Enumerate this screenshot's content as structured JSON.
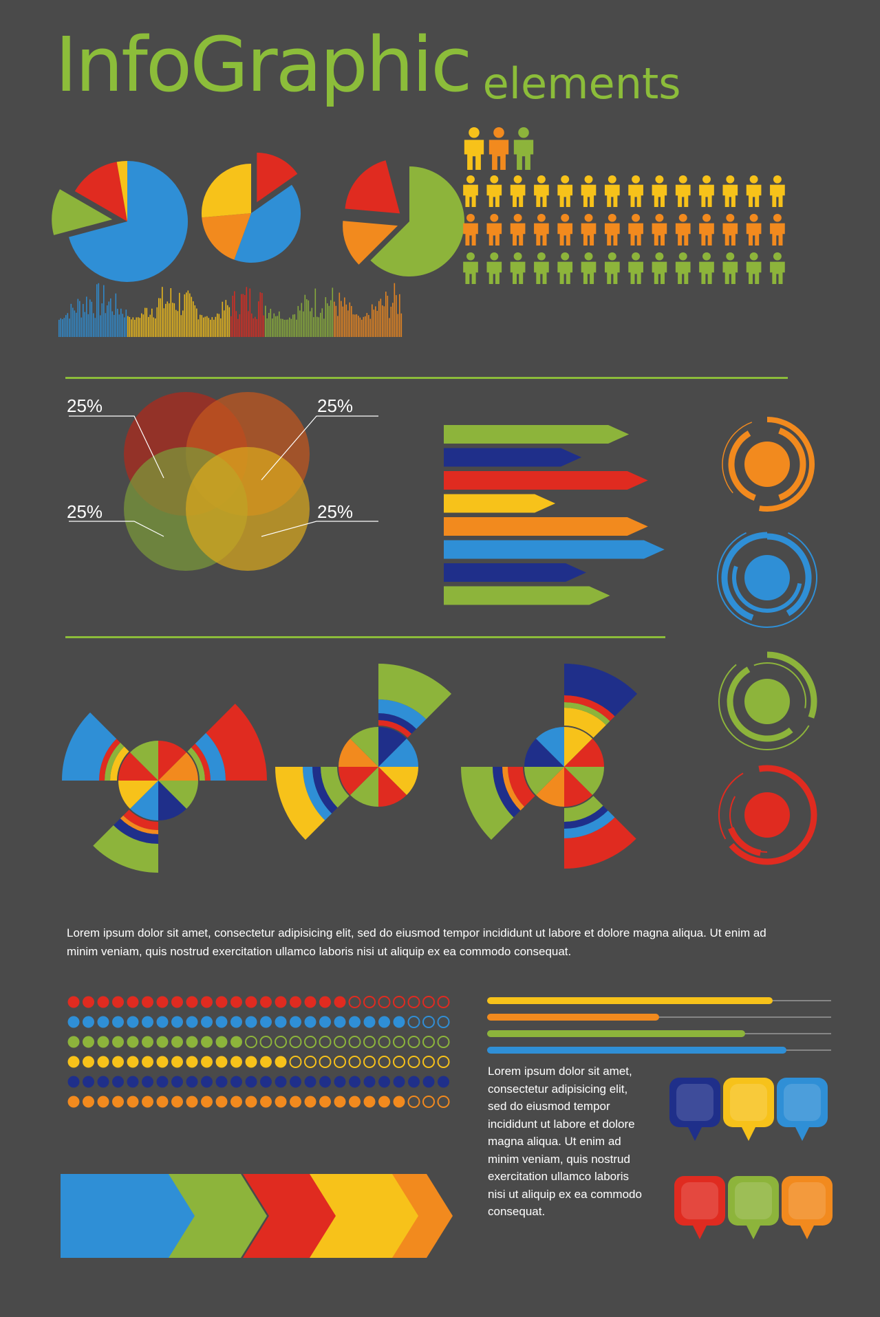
{
  "title": {
    "main": "InfoGraphic",
    "sub": "elements"
  },
  "venn": {
    "labels": [
      "25%",
      "25%",
      "25%",
      "25%"
    ],
    "colors": [
      "#b02a1c",
      "#c4571e",
      "#7b9a3a",
      "#d8a81e"
    ]
  },
  "people": {
    "rows": [
      {
        "color": "#f7c21a",
        "count": 14
      },
      {
        "color": "#f28a1e",
        "count": 14
      },
      {
        "color": "#8db43b",
        "count": 14
      }
    ],
    "header_colors": [
      "#f7c21a",
      "#f28a1e",
      "#8db43b"
    ]
  },
  "text": {
    "paragraph_wide": "Lorem ipsum dolor sit amet, consectetur adipisicing elit, sed do eiusmod tempor incididunt ut labore et dolore magna aliqua. Ut enim ad minim veniam, quis nostrud exercitation ullamco laboris nisi ut aliquip ex ea commodo consequat.",
    "paragraph_narrow": "Lorem ipsum dolor sit amet, consectetur adipisicing elit, sed do eiusmod tempor incididunt ut labore et dolore magna aliqua. Ut enim ad minim veniam, quis nostrud exercitation ullamco laboris nisi ut aliquip ex ea commodo consequat."
  },
  "dot_rows": [
    {
      "color": "#e02b20",
      "filled": 19,
      "total": 26
    },
    {
      "color": "#2f8fd6",
      "filled": 23,
      "total": 26
    },
    {
      "color": "#8db43b",
      "filled": 12,
      "total": 26
    },
    {
      "color": "#f7c21a",
      "filled": 15,
      "total": 26
    },
    {
      "color": "#1f2f8a",
      "filled": 26,
      "total": 26
    },
    {
      "color": "#f28a1e",
      "filled": 23,
      "total": 26
    }
  ],
  "progress_bars": [
    {
      "color": "#f7c21a",
      "fraction": 0.83
    },
    {
      "color": "#f28a1e",
      "fraction": 0.5
    },
    {
      "color": "#8db43b",
      "fraction": 0.75
    },
    {
      "color": "#2f8fd6",
      "fraction": 0.87
    }
  ],
  "arrow_bars": [
    {
      "color": "#8db43b",
      "fraction": 0.78
    },
    {
      "color": "#1f2f8a",
      "fraction": 0.58
    },
    {
      "color": "#e02b20",
      "fraction": 0.86
    },
    {
      "color": "#f7c21a",
      "fraction": 0.47
    },
    {
      "color": "#f28a1e",
      "fraction": 0.86
    },
    {
      "color": "#2f8fd6",
      "fraction": 0.93
    },
    {
      "color": "#1f2f8a",
      "fraction": 0.6
    },
    {
      "color": "#8db43b",
      "fraction": 0.7
    }
  ],
  "ring_gauges": [
    {
      "color": "#f28a1e"
    },
    {
      "color": "#2f8fd6"
    },
    {
      "color": "#8db43b"
    },
    {
      "color": "#e02b20"
    }
  ],
  "pins": {
    "top": [
      "#1f2f8a",
      "#f7c21a",
      "#2f8fd6"
    ],
    "bottom": [
      "#e02b20",
      "#8db43b",
      "#f28a1e"
    ]
  },
  "chevron_colors": [
    "#2f8fd6",
    "#8db43b",
    "#e02b20",
    "#f7c21a",
    "#f28a1e"
  ],
  "pie_colors": {
    "red": "#e02b20",
    "blue": "#2f8fd6",
    "green": "#8db43b",
    "yellow": "#f7c21a",
    "orange": "#f28a1e",
    "navy": "#1f2f8a"
  }
}
